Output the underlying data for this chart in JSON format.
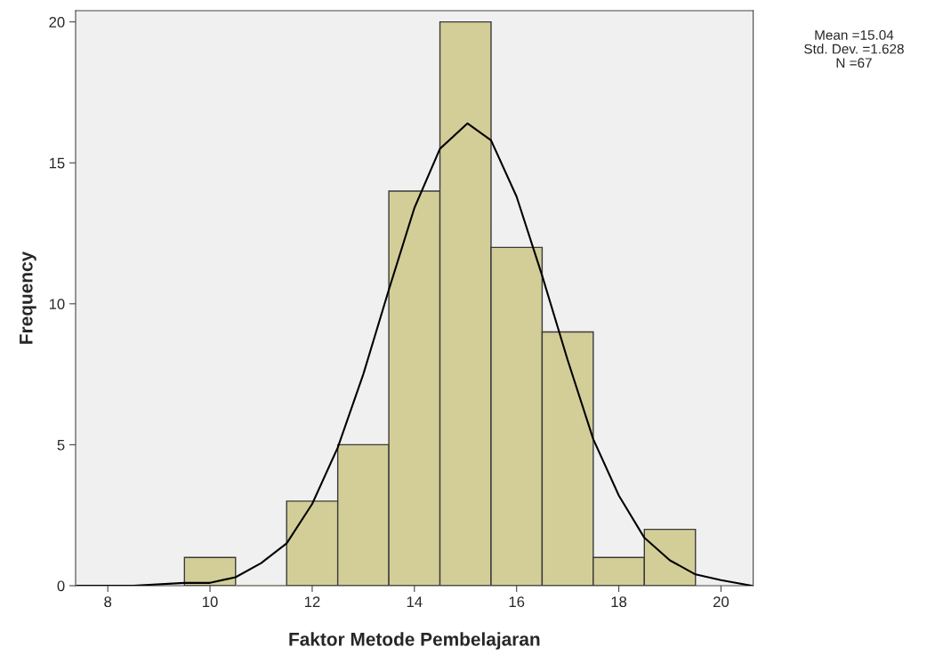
{
  "chart_data": {
    "type": "histogram",
    "xlabel": "Faktor Metode Pembelajaran",
    "ylabel": "Frequency",
    "bins": [
      9.5,
      10.5,
      11.5,
      12.5,
      13.5,
      14.5,
      15.5,
      16.5,
      17.5,
      18.5,
      19.5
    ],
    "values": [
      1,
      0,
      3,
      5,
      14,
      20,
      12,
      9,
      1,
      2
    ],
    "color": "#d3ce97",
    "series": [
      {
        "type": "line",
        "color": "#000000",
        "x": [
          7.4,
          8.5,
          9.5,
          10,
          10.5,
          11,
          11.5,
          12,
          12.5,
          13,
          13.5,
          14,
          14.5,
          15.04,
          15.5,
          16,
          16.5,
          17,
          17.5,
          18,
          18.5,
          19,
          19.5,
          20,
          20.6
        ],
        "values": [
          0.0,
          0.0,
          0.1,
          0.1,
          0.3,
          0.8,
          1.5,
          2.9,
          4.9,
          7.5,
          10.5,
          13.4,
          15.5,
          16.4,
          15.8,
          13.8,
          11.0,
          8.0,
          5.2,
          3.2,
          1.7,
          0.9,
          0.4,
          0.2,
          0.0
        ]
      }
    ],
    "xlim": [
      7.37,
      20.63
    ],
    "xticks": [
      8,
      10,
      12,
      14,
      16,
      18,
      20
    ],
    "ylim": [
      0,
      20.4
    ],
    "yticks": [
      0,
      5,
      10,
      15,
      20
    ],
    "grid": false,
    "annotations": [
      "Mean =15.04",
      "Std. Dev. =1.628",
      "N =67"
    ]
  }
}
